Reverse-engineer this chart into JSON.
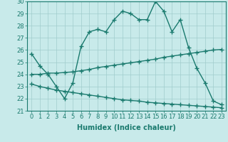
{
  "xlabel": "Humidex (Indice chaleur)",
  "xlim": [
    -0.5,
    23.5
  ],
  "ylim": [
    21,
    30
  ],
  "background_color": "#c8eaea",
  "grid_color": "#a0cccc",
  "line_color": "#1a7a6e",
  "x": [
    0,
    1,
    2,
    3,
    4,
    5,
    6,
    7,
    8,
    9,
    10,
    11,
    12,
    13,
    14,
    15,
    16,
    17,
    18,
    19,
    20,
    21,
    22,
    23
  ],
  "line1": [
    25.7,
    24.7,
    24.0,
    23.0,
    22.0,
    23.3,
    26.3,
    27.5,
    27.7,
    27.5,
    28.5,
    29.2,
    29.0,
    28.5,
    28.5,
    30.0,
    29.2,
    27.5,
    28.5,
    26.2,
    24.5,
    23.3,
    21.8,
    21.5
  ],
  "line2": [
    24.0,
    24.0,
    24.1,
    24.1,
    24.15,
    24.2,
    24.3,
    24.4,
    24.55,
    24.65,
    24.75,
    24.85,
    24.95,
    25.05,
    25.15,
    25.25,
    25.4,
    25.5,
    25.6,
    25.7,
    25.8,
    25.9,
    26.0,
    26.05
  ],
  "line3": [
    23.2,
    23.0,
    22.85,
    22.7,
    22.6,
    22.5,
    22.4,
    22.3,
    22.2,
    22.1,
    22.0,
    21.9,
    21.85,
    21.8,
    21.7,
    21.65,
    21.6,
    21.55,
    21.5,
    21.45,
    21.4,
    21.35,
    21.3,
    21.25
  ],
  "yticks": [
    21,
    22,
    23,
    24,
    25,
    26,
    27,
    28,
    29,
    30
  ],
  "xticks": [
    0,
    1,
    2,
    3,
    4,
    5,
    6,
    7,
    8,
    9,
    10,
    11,
    12,
    13,
    14,
    15,
    16,
    17,
    18,
    19,
    20,
    21,
    22,
    23
  ],
  "marker": "+",
  "marker_size": 4,
  "linewidth": 1.0,
  "xlabel_fontsize": 7,
  "tick_fontsize": 6
}
